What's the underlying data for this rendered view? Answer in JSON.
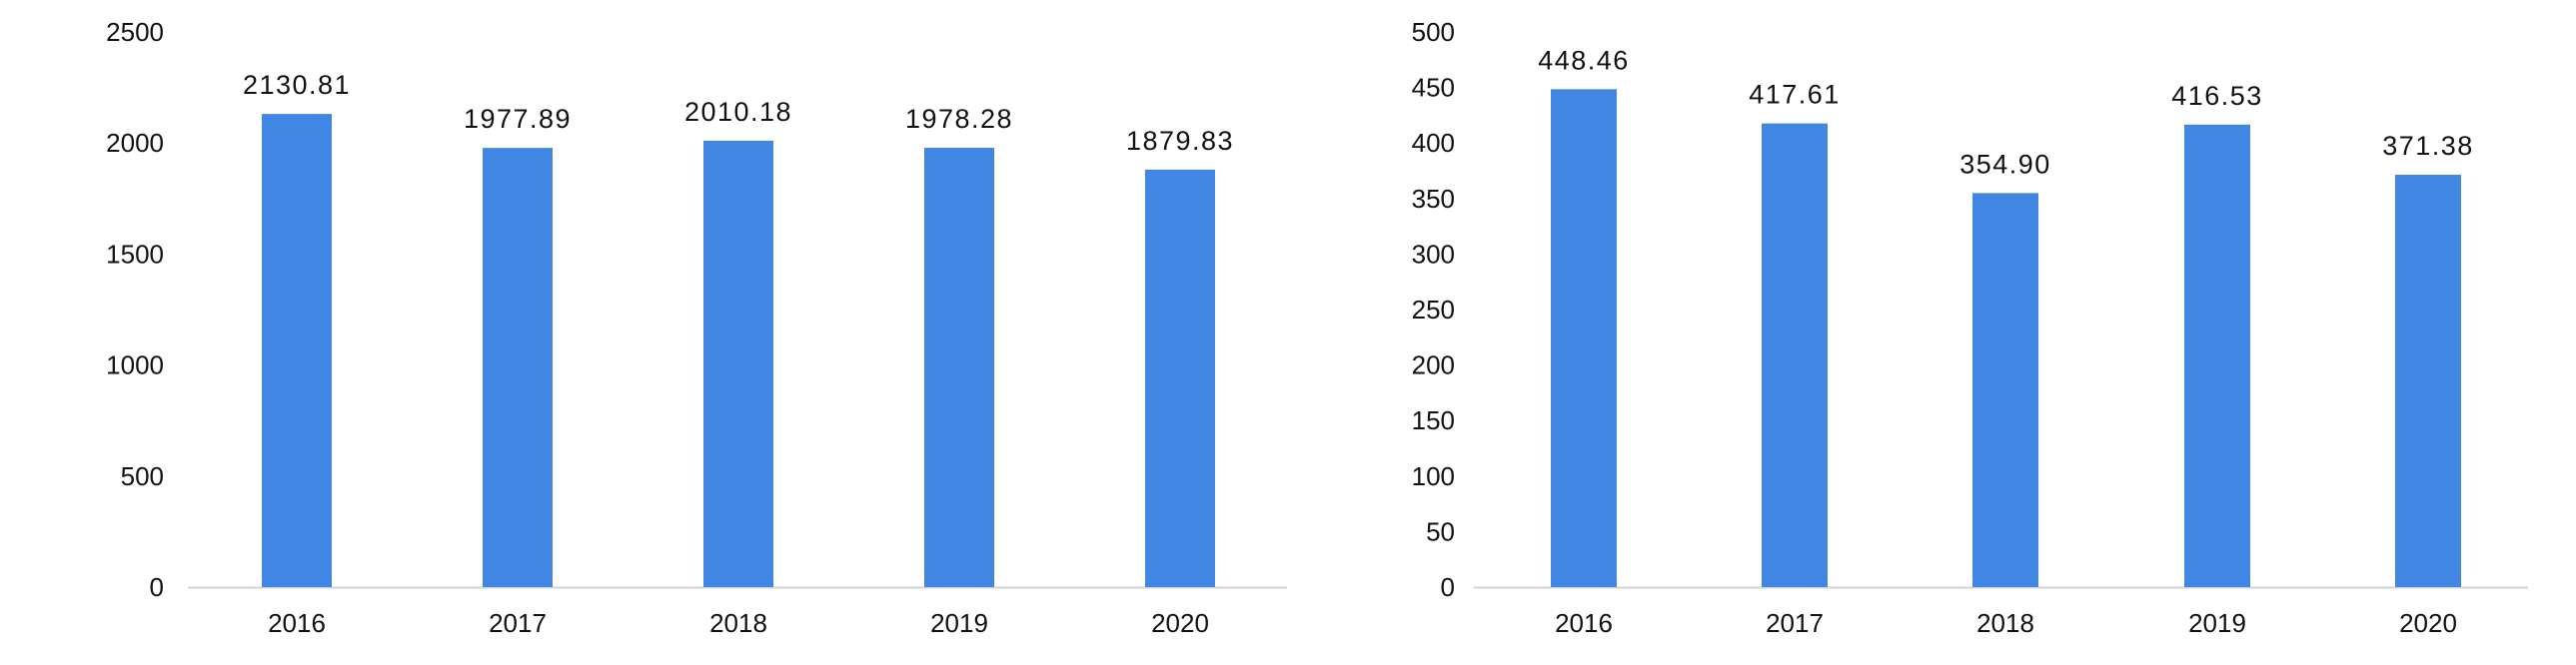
{
  "colors": {
    "bar": "#4286E3",
    "axis": "#d3d3d3",
    "text": "#111111"
  },
  "chart_data": [
    {
      "type": "bar",
      "categories": [
        "2016",
        "2017",
        "2018",
        "2019",
        "2020"
      ],
      "values": [
        2130.81,
        1977.89,
        2010.18,
        1978.28,
        1879.83
      ],
      "data_labels": [
        "2130.81",
        "1977.89",
        "2010.18",
        "1978.28",
        "1879.83"
      ],
      "yticks": [
        "0",
        "500",
        "1000",
        "1500",
        "2000",
        "2500"
      ],
      "ylim": [
        0,
        2500
      ],
      "grid": false
    },
    {
      "type": "bar",
      "categories": [
        "2016",
        "2017",
        "2018",
        "2019",
        "2020"
      ],
      "values": [
        448.46,
        417.61,
        354.9,
        416.53,
        371.38
      ],
      "data_labels": [
        "448.46",
        "417.61",
        "354.90",
        "416.53",
        "371.38"
      ],
      "yticks": [
        "0",
        "50",
        "100",
        "150",
        "200",
        "250",
        "300",
        "350",
        "400",
        "450",
        "500"
      ],
      "ylim": [
        0,
        500
      ],
      "grid": false
    }
  ]
}
